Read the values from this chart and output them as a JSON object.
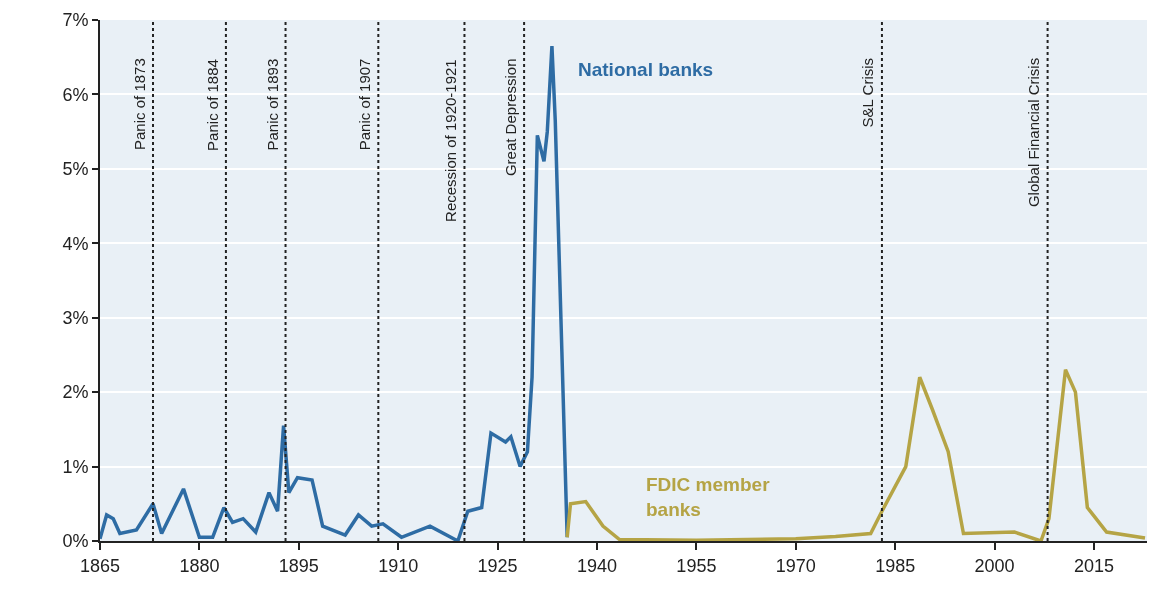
{
  "chart_data": {
    "type": "line",
    "xlim": [
      1865,
      2023
    ],
    "ylim": [
      0,
      7
    ],
    "xticks": [
      1865,
      1880,
      1895,
      1910,
      1925,
      1940,
      1955,
      1970,
      1985,
      2000,
      2015
    ],
    "yticks": [
      {
        "value": 0,
        "label": "0%"
      },
      {
        "value": 1,
        "label": "1%"
      },
      {
        "value": 2,
        "label": "2%"
      },
      {
        "value": 3,
        "label": "3%"
      },
      {
        "value": 4,
        "label": "4%"
      },
      {
        "value": 5,
        "label": "5%"
      },
      {
        "value": 6,
        "label": "6%"
      },
      {
        "value": 7,
        "label": "7%"
      }
    ],
    "grid": "y",
    "legend": false,
    "marker": "none",
    "line_style": "solid",
    "series": [
      {
        "name": "National banks",
        "color": "#2e6ca4",
        "x": [
          1865,
          1866,
          1867,
          1868,
          1870.5,
          1873,
          1874.3,
          1877.6,
          1880,
          1882,
          1883.7,
          1885,
          1886.6,
          1888.5,
          1890.5,
          1891.8,
          1892.7,
          1893.5,
          1894.8,
          1897,
          1898.6,
          1902,
          1904,
          1906,
          1907.7,
          1910.5,
          1914.8,
          1919,
          1920.5,
          1922.6,
          1924,
          1926.2,
          1927,
          1928.4,
          1929.5,
          1930.2,
          1931,
          1932,
          1932.5,
          1933.2,
          1933.7,
          1934.7,
          1935.5
        ],
        "values": [
          0.03,
          0.35,
          0.3,
          0.1,
          0.15,
          0.5,
          0.1,
          0.7,
          0.05,
          0.05,
          0.45,
          0.25,
          0.3,
          0.12,
          0.65,
          0.4,
          1.55,
          0.65,
          0.85,
          0.82,
          0.2,
          0.08,
          0.35,
          0.2,
          0.23,
          0.05,
          0.2,
          0,
          0.4,
          0.45,
          1.45,
          1.33,
          1.4,
          1.0,
          1.2,
          2.2,
          5.45,
          5.1,
          5.5,
          6.65,
          5.65,
          2.55,
          0.05
        ]
      },
      {
        "name": "FDIC member banks",
        "color": "#b5a445",
        "x": [
          1935.5,
          1936,
          1938.3,
          1940.9,
          1943.4,
          1955,
          1970,
          1976,
          1981.3,
          1983,
          1986.6,
          1988.7,
          1990.6,
          1993,
          1995.3,
          2003,
          2007,
          2008.2,
          2010.7,
          2012.2,
          2014,
          2016.9,
          2022.7
        ],
        "values": [
          0.05,
          0.5,
          0.53,
          0.2,
          0.02,
          0.01,
          0.03,
          0.06,
          0.1,
          0.4,
          1.0,
          2.2,
          1.77,
          1.2,
          0.1,
          0.12,
          0,
          0.3,
          2.3,
          2.0,
          0.45,
          0.12,
          0.04
        ]
      }
    ],
    "ref_lines": [
      {
        "axis": "x",
        "value": 1873,
        "label": "Panic of 1873",
        "line_style": "dotted",
        "color": "#222222"
      },
      {
        "axis": "x",
        "value": 1884,
        "label": "Panic of 1884",
        "line_style": "dotted",
        "color": "#222222"
      },
      {
        "axis": "x",
        "value": 1893,
        "label": "Panic of 1893",
        "line_style": "dotted",
        "color": "#222222"
      },
      {
        "axis": "x",
        "value": 1907,
        "label": "Panic of 1907",
        "line_style": "dotted",
        "color": "#222222"
      },
      {
        "axis": "x",
        "value": 1920,
        "label": "Recession of 1920-1921",
        "line_style": "dotted",
        "color": "#222222"
      },
      {
        "axis": "x",
        "value": 1929,
        "label": "Great Depression",
        "line_style": "dotted",
        "color": "#222222"
      },
      {
        "axis": "x",
        "value": 1983,
        "label": "S&L Crisis",
        "line_style": "dotted",
        "color": "#222222"
      },
      {
        "axis": "x",
        "value": 2008,
        "label": "Global Financial Crisis",
        "line_style": "dotted",
        "color": "#222222"
      }
    ]
  }
}
